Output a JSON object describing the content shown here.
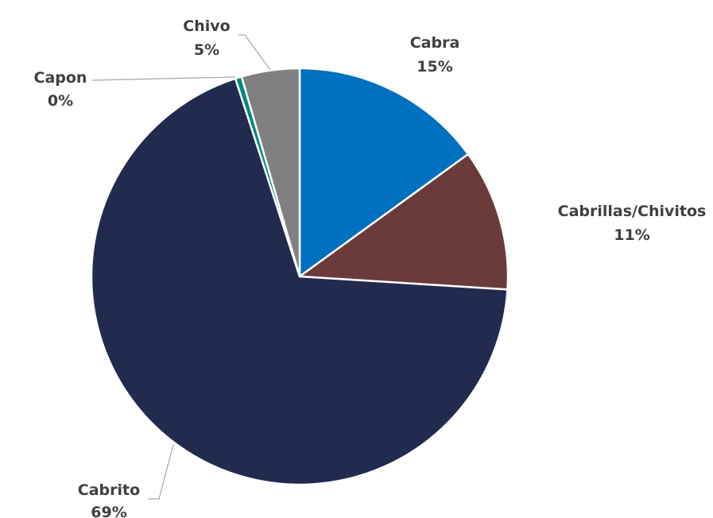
{
  "chart_data": {
    "type": "pie",
    "slices": [
      {
        "label": "Cabra",
        "value": 15,
        "display": "15%",
        "color": "#0070C0"
      },
      {
        "label": "Cabrillas/Chivitos",
        "value": 11,
        "display": "11%",
        "color": "#6B3A3A"
      },
      {
        "label": "Cabrito",
        "value": 69,
        "display": "69%",
        "color": "#222A50"
      },
      {
        "label": "Capon",
        "value": 0.5,
        "display": "0%",
        "color": "#00897B"
      },
      {
        "label": "Chivo",
        "value": 4.5,
        "display": "5%",
        "color": "#808080"
      }
    ],
    "start_angle": "12 o'clock",
    "direction": "clockwise",
    "legend": "none",
    "data_labels": "outside with category name and percent"
  }
}
